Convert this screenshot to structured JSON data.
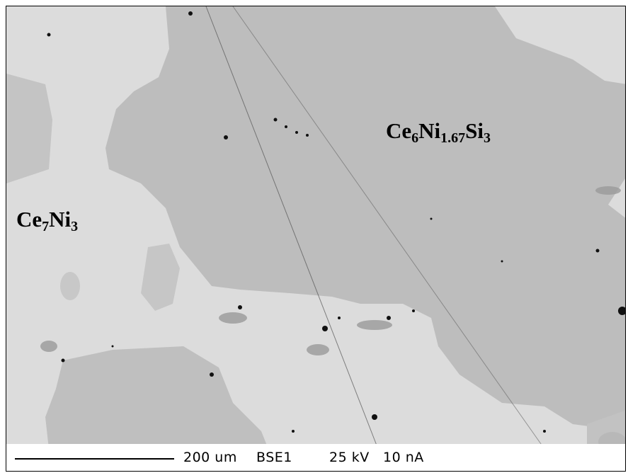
{
  "image": {
    "phases": [
      {
        "formula_parts": [
          {
            "el": "Ce"
          },
          {
            "sub": "6"
          },
          {
            "el": "Ni"
          },
          {
            "sub": "1.67"
          },
          {
            "el": "Si"
          },
          {
            "sub": "3"
          }
        ]
      },
      {
        "formula_parts": [
          {
            "el": "Ce"
          },
          {
            "sub": "7"
          },
          {
            "el": "Ni"
          },
          {
            "sub": "3"
          }
        ]
      }
    ],
    "info_bar": {
      "scale": "200 um",
      "detector": "BSE1",
      "voltage": "25 kV",
      "current": "10 nA"
    },
    "colors": {
      "matrix_light": "#dcdcdc",
      "grain_dark": "#bdbdbd",
      "pore": "#111111"
    }
  }
}
